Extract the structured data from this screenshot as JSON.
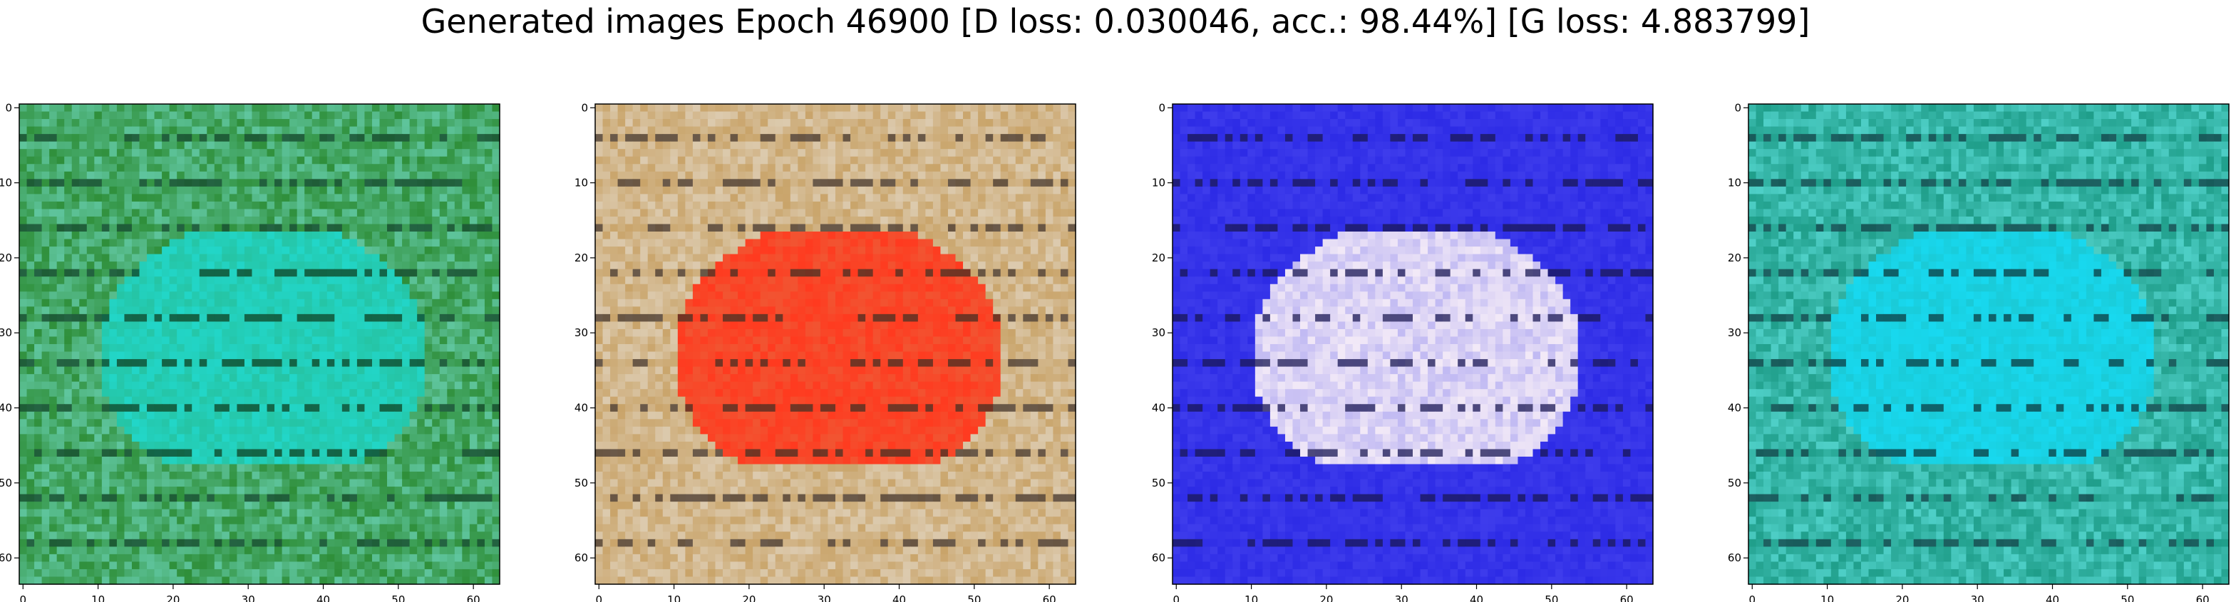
{
  "figure_title": "Generated images Epoch 46900 [D loss: 0.030046, acc.: 98.44%] [G loss: 4.883799]",
  "chart_data": [
    {
      "type": "heatmap",
      "content": "generated image (green/cyan textured)",
      "palette": {
        "base": "#2f8f3a",
        "highlight": "#22d6c8",
        "dark": "#0b3a1c",
        "stripe": "#7fe9e0"
      },
      "x_ticks": [
        0,
        10,
        20,
        30,
        40,
        50,
        60
      ],
      "y_ticks": [
        0,
        10,
        20,
        30,
        40,
        50,
        60
      ],
      "xlim": [
        -0.5,
        63.5
      ],
      "ylim": [
        63.5,
        -0.5
      ],
      "grid": false
    },
    {
      "type": "heatmap",
      "content": "generated image (red/tan textured)",
      "palette": {
        "base": "#c9a46a",
        "highlight": "#ff3a1f",
        "dark": "#3a2a20",
        "stripe": "#e9e4dc"
      },
      "x_ticks": [
        0,
        10,
        20,
        30,
        40,
        50,
        60
      ],
      "y_ticks": [
        0,
        10,
        20,
        30,
        40,
        50,
        60
      ],
      "xlim": [
        -0.5,
        63.5
      ],
      "ylim": [
        63.5,
        -0.5
      ],
      "grid": false
    },
    {
      "type": "heatmap",
      "content": "generated image (blue/white textured)",
      "palette": {
        "base": "#2d2be6",
        "highlight": "#f2e9f7",
        "dark": "#14124a",
        "stripe": "#4a48f0"
      },
      "x_ticks": [
        0,
        10,
        20,
        30,
        40,
        50,
        60
      ],
      "y_ticks": [
        0,
        10,
        20,
        30,
        40,
        50,
        60
      ],
      "xlim": [
        -0.5,
        63.5
      ],
      "ylim": [
        63.5,
        -0.5
      ],
      "grid": false
    },
    {
      "type": "heatmap",
      "content": "generated image (cyan/green textured)",
      "palette": {
        "base": "#1f9e8a",
        "highlight": "#18d9f0",
        "dark": "#0a3338",
        "stripe": "#6ef0f0"
      },
      "x_ticks": [
        0,
        10,
        20,
        30,
        40,
        50,
        60
      ],
      "y_ticks": [
        0,
        10,
        20,
        30,
        40,
        50,
        60
      ],
      "xlim": [
        -0.5,
        63.5
      ],
      "ylim": [
        63.5,
        -0.5
      ],
      "grid": false
    }
  ]
}
